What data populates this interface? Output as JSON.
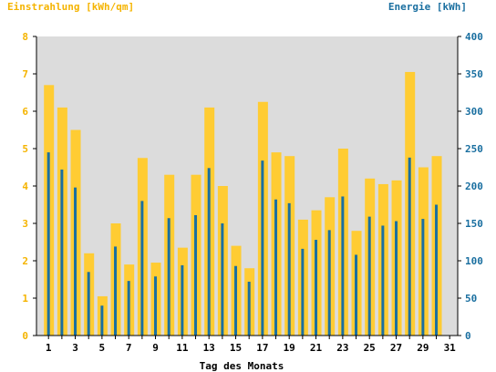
{
  "chart_data": {
    "type": "bar",
    "title_left": "Einstrahlung [kWh/qm]",
    "title_right": "Energie [kWh]",
    "xlabel": "Tag des Monats",
    "categories": [
      1,
      2,
      3,
      4,
      5,
      6,
      7,
      8,
      9,
      10,
      11,
      12,
      13,
      14,
      15,
      16,
      17,
      18,
      19,
      20,
      21,
      22,
      23,
      24,
      25,
      26,
      27,
      28,
      29,
      30,
      31
    ],
    "x_tick_labels": [
      "1",
      "3",
      "5",
      "7",
      "9",
      "11",
      "13",
      "15",
      "17",
      "19",
      "21",
      "23",
      "25",
      "27",
      "29",
      "31"
    ],
    "y_left": {
      "ylim": [
        0,
        8
      ],
      "ticks": [
        "0",
        "1",
        "2",
        "3",
        "4",
        "5",
        "6",
        "7",
        "8"
      ]
    },
    "y_right": {
      "ylim": [
        0,
        400
      ],
      "ticks": [
        "0",
        "50",
        "100",
        "150",
        "200",
        "250",
        "300",
        "350",
        "400"
      ]
    },
    "grid": false,
    "series": [
      {
        "axis": "left",
        "color": "#ffcc33",
        "values": [
          6.7,
          6.1,
          5.5,
          2.2,
          1.05,
          3.0,
          1.9,
          4.75,
          1.95,
          4.3,
          2.35,
          4.3,
          6.1,
          4.0,
          2.4,
          1.8,
          6.25,
          4.9,
          4.8,
          3.1,
          3.35,
          3.7,
          5.0,
          2.8,
          4.2,
          4.05,
          4.15,
          7.05,
          4.5,
          4.8,
          0
        ]
      },
      {
        "axis": "right",
        "color": "#1a6fa0",
        "values": [
          245,
          222,
          198,
          85,
          40,
          119,
          73,
          180,
          79,
          157,
          94,
          161,
          224,
          150,
          93,
          72,
          234,
          182,
          177,
          116,
          128,
          141,
          186,
          108,
          159,
          147,
          153,
          238,
          156,
          175,
          0
        ]
      }
    ],
    "colors": {
      "plot_background": "#dcdcdc",
      "left_axis": "#f5b400",
      "right_axis": "#1a6fa0"
    }
  }
}
